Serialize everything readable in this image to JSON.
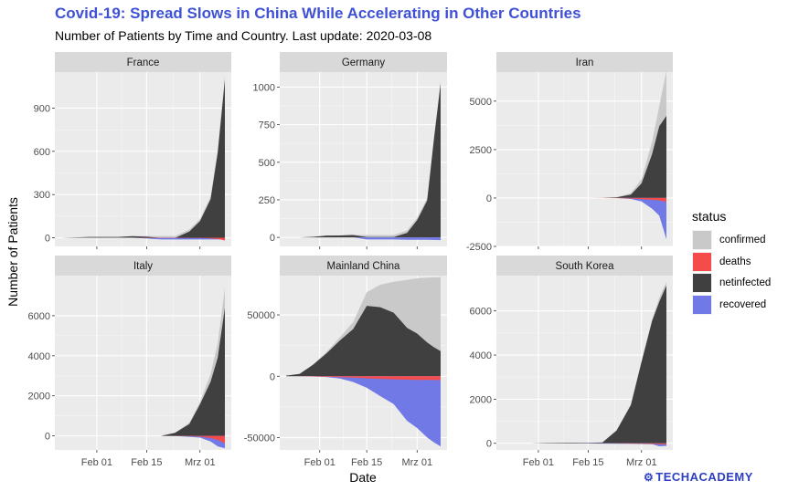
{
  "title": "Covid-19: Spread Slows in China While Accelerating in Other Countries",
  "subtitle": "Number of Patients by Time and Country. Last update: 2020-03-08",
  "brand": "TECHACADEMY",
  "colors": {
    "confirmed": "#c9c9c9",
    "deaths": "#f44b4b",
    "netinfected": "#404040",
    "recovered": "#7179e6",
    "panel_bg": "#ebebeb",
    "strip_bg": "#d9d9d9",
    "title": "#3f51d4"
  },
  "legend": {
    "title": "status",
    "position": "right",
    "items": [
      {
        "key": "confirmed",
        "label": "confirmed"
      },
      {
        "key": "deaths",
        "label": "deaths"
      },
      {
        "key": "netinfected",
        "label": "netinfected"
      },
      {
        "key": "recovered",
        "label": "recovered"
      }
    ]
  },
  "chart_data": {
    "type": "area",
    "xlabel": "Date",
    "ylabel": "Number of Patients",
    "xlim": [
      "2020-01-22",
      "2020-03-08"
    ],
    "xticks": [
      {
        "date": "2020-02-01",
        "label": "Feb 01"
      },
      {
        "date": "2020-02-15",
        "label": "Feb 15"
      },
      {
        "date": "2020-03-01",
        "label": "Mrz 01"
      }
    ],
    "dates": [
      "2020-01-22",
      "2020-01-26",
      "2020-01-30",
      "2020-02-03",
      "2020-02-07",
      "2020-02-11",
      "2020-02-15",
      "2020-02-19",
      "2020-02-23",
      "2020-02-27",
      "2020-03-01",
      "2020-03-04",
      "2020-03-06",
      "2020-03-08"
    ],
    "grid": true,
    "panels": [
      {
        "name": "France",
        "ylim": [
          -60,
          1150
        ],
        "yticks": [
          0,
          300,
          600,
          900
        ],
        "confirmed": [
          0,
          3,
          6,
          6,
          6,
          11,
          12,
          12,
          12,
          57,
          130,
          285,
          613,
          1126
        ],
        "deaths": [
          0,
          0,
          0,
          0,
          0,
          0,
          1,
          1,
          1,
          2,
          2,
          4,
          9,
          19
        ],
        "recovered": [
          0,
          0,
          0,
          0,
          0,
          0,
          4,
          12,
          12,
          12,
          12,
          12,
          12,
          12
        ],
        "netinfected": [
          0,
          3,
          6,
          6,
          6,
          11,
          7,
          -1,
          -1,
          43,
          116,
          269,
          592,
          1095
        ]
      },
      {
        "name": "Germany",
        "ylim": [
          -60,
          1100
        ],
        "yticks": [
          0,
          250,
          500,
          750,
          1000
        ],
        "confirmed": [
          0,
          0,
          4,
          12,
          13,
          16,
          16,
          16,
          16,
          46,
          130,
          262,
          670,
          1040
        ],
        "deaths": [
          0,
          0,
          0,
          0,
          0,
          0,
          0,
          0,
          0,
          0,
          0,
          0,
          0,
          0
        ],
        "recovered": [
          0,
          0,
          0,
          0,
          0,
          0,
          14,
          14,
          14,
          16,
          16,
          16,
          17,
          18
        ],
        "netinfected": [
          0,
          0,
          4,
          12,
          13,
          16,
          2,
          2,
          2,
          30,
          114,
          246,
          653,
          1022
        ]
      },
      {
        "name": "Iran",
        "ylim": [
          -2500,
          6500
        ],
        "yticks": [
          -2500,
          0,
          2500,
          5000
        ],
        "confirmed": [
          0,
          0,
          0,
          0,
          0,
          0,
          0,
          5,
          43,
          245,
          978,
          2922,
          4747,
          6566
        ],
        "deaths": [
          0,
          0,
          0,
          0,
          0,
          0,
          0,
          2,
          8,
          26,
          54,
          92,
          124,
          194
        ],
        "recovered": [
          0,
          0,
          0,
          0,
          0,
          0,
          0,
          0,
          0,
          49,
          175,
          552,
          913,
          2134
        ],
        "netinfected": [
          0,
          0,
          0,
          0,
          0,
          0,
          0,
          3,
          35,
          170,
          749,
          2278,
          3710,
          4238
        ]
      },
      {
        "name": "Italy",
        "ylim": [
          -700,
          8000
        ],
        "yticks": [
          0,
          2000,
          4000,
          6000
        ],
        "confirmed": [
          0,
          0,
          2,
          2,
          3,
          3,
          3,
          3,
          155,
          655,
          1694,
          3089,
          4636,
          7375
        ],
        "deaths": [
          0,
          0,
          0,
          0,
          0,
          0,
          0,
          0,
          3,
          17,
          34,
          107,
          197,
          366
        ],
        "recovered": [
          0,
          0,
          0,
          0,
          0,
          0,
          0,
          0,
          2,
          45,
          83,
          276,
          523,
          622
        ],
        "netinfected": [
          0,
          0,
          2,
          2,
          3,
          3,
          3,
          3,
          150,
          593,
          1577,
          2706,
          3916,
          6387
        ]
      },
      {
        "name": "Mainland China",
        "ylim": [
          -60000,
          82000
        ],
        "yticks": [
          -50000,
          0,
          50000
        ],
        "confirmed": [
          547,
          2070,
          9692,
          19665,
          31728,
          44386,
          68413,
          74546,
          76936,
          78497,
          79824,
          80400,
          80573,
          80651
        ],
        "deaths": [
          17,
          56,
          213,
          425,
          719,
          1112,
          1662,
          2114,
          2441,
          2744,
          2870,
          2981,
          3042,
          3070
        ],
        "recovered": [
          28,
          49,
          178,
          621,
          1887,
          4655,
          9395,
          16155,
          22687,
          36291,
          42162,
          49856,
          53888,
          57065
        ],
        "netinfected": [
          502,
          1965,
          9301,
          18619,
          29122,
          38619,
          57356,
          56277,
          51808,
          39462,
          34792,
          27563,
          23643,
          20516
        ]
      },
      {
        "name": "South Korea",
        "ylim": [
          -300,
          7600
        ],
        "yticks": [
          0,
          2000,
          4000,
          6000
        ],
        "confirmed": [
          1,
          3,
          4,
          15,
          24,
          28,
          28,
          51,
          602,
          1766,
          3736,
          5621,
          6593,
          7314
        ],
        "deaths": [
          0,
          0,
          0,
          0,
          0,
          0,
          0,
          0,
          6,
          13,
          17,
          28,
          42,
          50
        ],
        "recovered": [
          0,
          0,
          0,
          0,
          0,
          3,
          9,
          16,
          18,
          22,
          30,
          41,
          135,
          118
        ],
        "netinfected": [
          1,
          3,
          4,
          15,
          24,
          25,
          19,
          35,
          578,
          1731,
          3689,
          5552,
          6416,
          7146
        ]
      }
    ]
  }
}
